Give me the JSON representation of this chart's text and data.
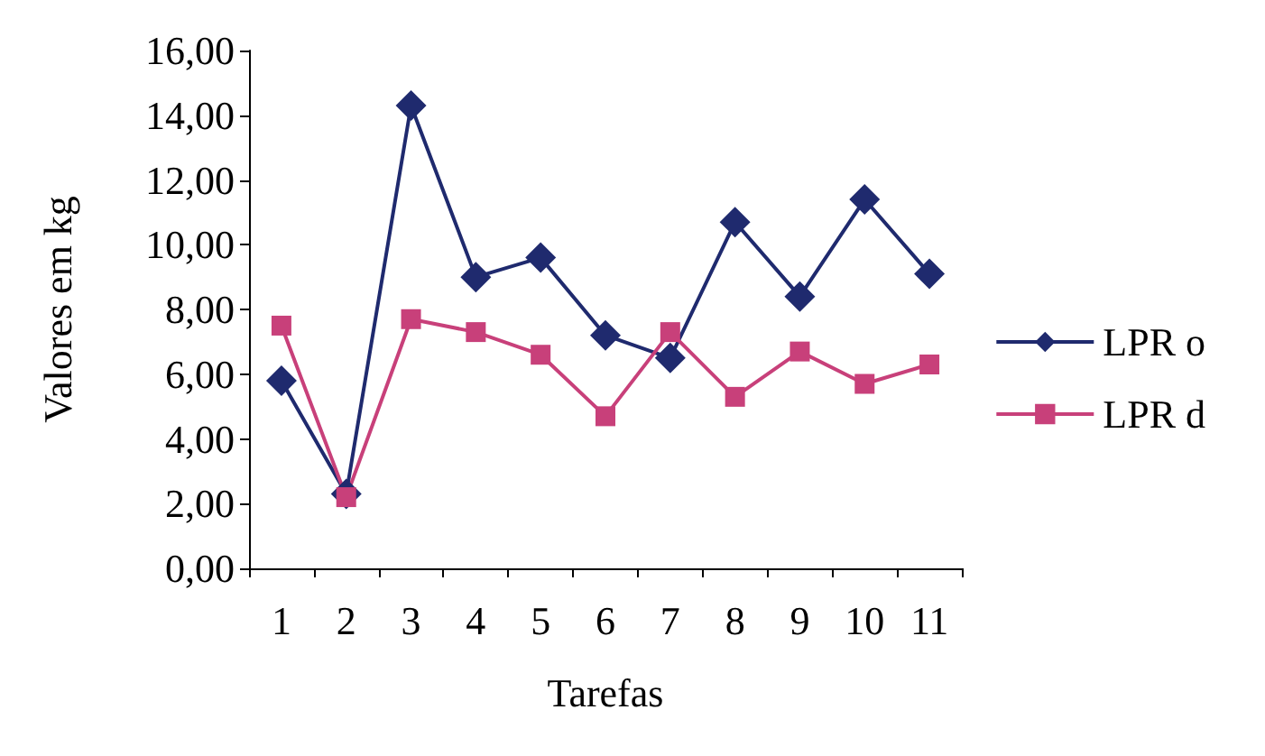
{
  "chart_data": {
    "type": "line",
    "xlabel": "Tarefas",
    "ylabel": "Valores em kg",
    "categories": [
      "1",
      "2",
      "3",
      "4",
      "5",
      "6",
      "7",
      "8",
      "9",
      "10",
      "11"
    ],
    "series": [
      {
        "name": "LPR o",
        "color": "#1f2a6e",
        "marker": "diamond",
        "values": [
          5.8,
          2.3,
          14.3,
          9.0,
          9.6,
          7.2,
          6.5,
          10.7,
          8.4,
          11.4,
          9.1
        ]
      },
      {
        "name": "LPR d",
        "color": "#c8407a",
        "marker": "square",
        "values": [
          7.5,
          2.2,
          7.7,
          7.3,
          6.6,
          4.7,
          7.3,
          5.3,
          6.7,
          5.7,
          6.3
        ]
      }
    ],
    "ylim": [
      0,
      16
    ],
    "yticks": [
      {
        "value": 0,
        "label": "0,00"
      },
      {
        "value": 2,
        "label": "2,00"
      },
      {
        "value": 4,
        "label": "4,00"
      },
      {
        "value": 6,
        "label": "6,00"
      },
      {
        "value": 8,
        "label": "8,00"
      },
      {
        "value": 10,
        "label": "10,00"
      },
      {
        "value": 12,
        "label": "12,00"
      },
      {
        "value": 14,
        "label": "14,00"
      },
      {
        "value": 16,
        "label": "16,00"
      }
    ],
    "grid": false,
    "legend": "right",
    "line_style": "solid"
  }
}
